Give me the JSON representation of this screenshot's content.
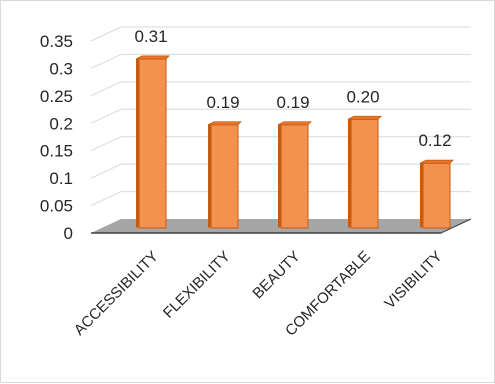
{
  "chart_data": {
    "type": "bar",
    "style": "3d-column",
    "categories": [
      "ACCESSIBILITY",
      "FLEXIBILITY",
      "BEAUTY",
      "COMFORTABLE",
      "VISIBILITY"
    ],
    "values": [
      0.31,
      0.19,
      0.19,
      0.2,
      0.12
    ],
    "data_labels": [
      "0.31",
      "0.19",
      "0.19",
      "0.20",
      "0.12"
    ],
    "yticks": [
      "0",
      "0.05",
      "0.1",
      "0.15",
      "0.2",
      "0.25",
      "0.3",
      "0.35"
    ],
    "ylim": [
      0,
      0.35
    ],
    "grid": true,
    "legend": "none",
    "colors": {
      "bar_front": "#f4914f",
      "bar_side": "#c55a11",
      "bar_top": "#e8762c",
      "bar_edge": "#c55a11",
      "floor": "#a6a6a6",
      "grid": "#d9d9d9"
    }
  }
}
